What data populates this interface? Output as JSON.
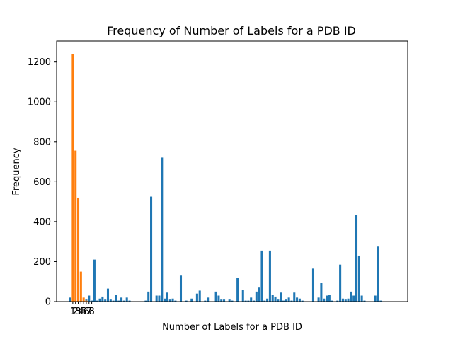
{
  "chart_data": {
    "type": "bar",
    "title": "Frequency of Number of Labels for a PDB ID",
    "xlabel": "Number of Labels for a PDB ID",
    "ylabel": "Frequency",
    "xlim": [
      -5,
      125
    ],
    "ylim": [
      0,
      1305
    ],
    "yticks": [
      0,
      200,
      400,
      600,
      800,
      1000,
      1200
    ],
    "xticks": [
      1,
      2,
      3,
      4,
      5,
      6,
      7,
      8
    ],
    "grid": false,
    "colors": {
      "blue": "#1f77b4",
      "orange": "#ff7f0e"
    },
    "series": [
      {
        "color": "blue",
        "x": [
          0,
          1,
          2,
          3,
          4,
          5,
          6,
          7,
          8,
          9,
          10,
          11,
          12,
          13,
          14,
          15,
          16,
          17,
          18,
          19,
          20,
          21,
          22,
          23,
          24,
          25,
          26,
          27,
          28,
          29,
          30,
          31,
          32,
          33,
          34,
          35,
          36,
          37,
          38,
          39,
          40,
          41,
          42,
          43,
          44,
          45,
          46,
          47,
          48,
          49,
          50,
          51,
          52,
          53,
          54,
          55,
          56,
          57,
          58,
          59,
          60,
          61,
          62,
          63,
          64,
          65,
          66,
          67,
          68,
          69,
          70,
          71,
          72,
          73,
          74,
          75,
          76,
          77,
          78,
          79,
          80,
          81,
          82,
          83,
          84,
          85,
          86,
          87,
          88,
          89,
          90,
          91,
          92,
          93,
          94,
          95,
          96,
          97,
          98,
          99,
          100,
          101,
          102,
          103,
          104,
          105,
          106,
          107,
          108,
          109,
          110,
          111,
          112,
          113,
          114,
          115,
          116,
          117,
          118
        ],
        "values": [
          20,
          0,
          0,
          0,
          0,
          0,
          10,
          30,
          5,
          210,
          5,
          15,
          25,
          10,
          65,
          10,
          5,
          35,
          5,
          20,
          5,
          20,
          5,
          0,
          0,
          0,
          0,
          0,
          5,
          50,
          525,
          0,
          30,
          30,
          720,
          15,
          45,
          10,
          15,
          5,
          0,
          130,
          0,
          5,
          0,
          15,
          0,
          40,
          55,
          0,
          5,
          20,
          0,
          0,
          50,
          30,
          10,
          10,
          0,
          10,
          5,
          0,
          120,
          0,
          60,
          5,
          5,
          20,
          5,
          50,
          70,
          255,
          5,
          15,
          255,
          35,
          25,
          10,
          45,
          5,
          10,
          20,
          5,
          45,
          20,
          15,
          5,
          0,
          0,
          0,
          165,
          0,
          20,
          95,
          15,
          30,
          35,
          5,
          0,
          5,
          185,
          15,
          10,
          15,
          50,
          30,
          435,
          230,
          30,
          5,
          0,
          0,
          0,
          30,
          275,
          5,
          0,
          0,
          0
        ]
      },
      {
        "color": "orange",
        "x": [
          1,
          2,
          3,
          4,
          5,
          6
        ],
        "values": [
          1240,
          755,
          520,
          150,
          20,
          5
        ]
      }
    ]
  }
}
